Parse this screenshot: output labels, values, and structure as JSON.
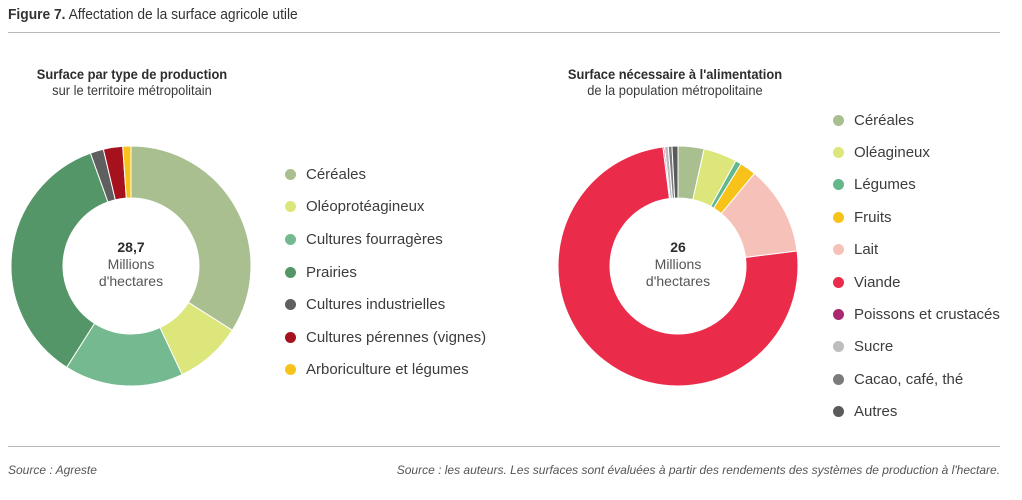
{
  "figure": {
    "label": "Figure 7.",
    "title": "Affectation de la surface agricole utile",
    "source_left": "Source : Agreste",
    "source_right": "Source : les auteurs. Les surfaces sont évaluées à partir des rendements des systèmes de production à l'hectare."
  },
  "chart_data": [
    {
      "type": "pie",
      "title": "Surface par type de production",
      "subtitle": "sur le territoire métropolitain",
      "center_value": "28,7",
      "center_label_line1": "Millions",
      "center_label_line2": "d'hectares",
      "legend_position": "right",
      "unit": "%",
      "slices": [
        {
          "label": "Céréales",
          "value": 34,
          "color": "#a9bf8f"
        },
        {
          "label": "Oléoprotéagineux",
          "value": 9,
          "color": "#dde67a"
        },
        {
          "label": "Cultures fourragères",
          "value": 16,
          "color": "#74b98f"
        },
        {
          "label": "Prairies",
          "value": 35.5,
          "color": "#559668"
        },
        {
          "label": "Cultures industrielles",
          "value": 1.8,
          "color": "#5f5f5f"
        },
        {
          "label": "Cultures pérennes (vignes)",
          "value": 2.6,
          "color": "#a5121d"
        },
        {
          "label": "Arboriculture et légumes",
          "value": 1.1,
          "color": "#f7c31a"
        }
      ]
    },
    {
      "type": "pie",
      "title": "Surface nécessaire à l'alimentation",
      "subtitle": "de la population métropolitaine",
      "center_value": "26",
      "center_label_line1": "Millions",
      "center_label_line2": "d'hectares",
      "legend_position": "right",
      "unit": "%",
      "slices": [
        {
          "label": "Céréales",
          "value": 3.5,
          "color": "#a9bf8f"
        },
        {
          "label": "Oléagineux",
          "value": 4.5,
          "color": "#dde67a"
        },
        {
          "label": "Légumes",
          "value": 0.8,
          "color": "#62b78b"
        },
        {
          "label": "Fruits",
          "value": 2.2,
          "color": "#f7c31a"
        },
        {
          "label": "Lait",
          "value": 12,
          "color": "#f6c1b9"
        },
        {
          "label": "Viande",
          "value": 75,
          "color": "#ea2c4a"
        },
        {
          "label": "Poissons et crustacés",
          "value": 0.2,
          "color": "#a8296f"
        },
        {
          "label": "Sucre",
          "value": 0.5,
          "color": "#bdbdbd"
        },
        {
          "label": "Cacao, café, thé",
          "value": 0.5,
          "color": "#7b7b7b"
        },
        {
          "label": "Autres",
          "value": 0.8,
          "color": "#5a5a5a"
        }
      ]
    }
  ]
}
